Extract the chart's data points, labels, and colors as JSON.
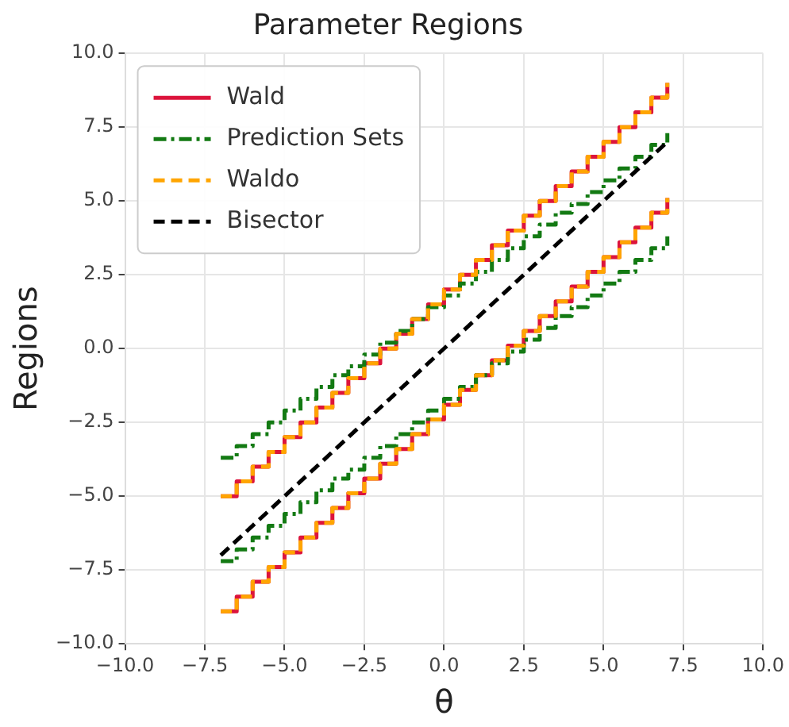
{
  "chart_data": {
    "type": "step",
    "title": "Parameter Regions",
    "xlabel": "θ",
    "ylabel": "Regions",
    "x": [
      -7,
      -6.5,
      -6,
      -5.5,
      -5,
      -4.5,
      -4,
      -3.5,
      -3,
      -2.5,
      -2,
      -1.5,
      -1,
      -0.5,
      0,
      0.5,
      1,
      1.5,
      2,
      2.5,
      3,
      3.5,
      4,
      4.5,
      5,
      5.5,
      6,
      6.5,
      7
    ],
    "series": [
      {
        "name": "Wald",
        "color": "#dc143c",
        "line_style": "solid",
        "values": [
          -5,
          -4.5,
          -4,
          -3.5,
          -3,
          -2.5,
          -2,
          -1.5,
          -1,
          -0.5,
          0,
          0.5,
          1,
          1.5,
          2,
          2.5,
          3,
          3.5,
          4,
          4.5,
          5,
          5.5,
          6,
          6.5,
          7,
          7.5,
          8,
          8.5,
          9
        ]
      },
      {
        "color": "#dc143c",
        "line_style": "solid",
        "values": [
          -8.9,
          -8.4,
          -7.9,
          -7.4,
          -6.9,
          -6.4,
          -5.9,
          -5.4,
          -4.9,
          -4.4,
          -3.9,
          -3.4,
          -2.9,
          -2.4,
          -1.9,
          -1.4,
          -0.9,
          -0.4,
          0.1,
          0.6,
          1.1,
          1.6,
          2.1,
          2.6,
          3.1,
          3.6,
          4.1,
          4.6,
          5.1
        ]
      },
      {
        "name": "Prediction Sets",
        "color": "#137a13",
        "line_style": "dashdot",
        "values": [
          -3.7,
          -3.3,
          -2.9,
          -2.5,
          -2.1,
          -1.7,
          -1.3,
          -0.9,
          -0.6,
          -0.2,
          0.2,
          0.6,
          1,
          1.4,
          1.8,
          2.2,
          2.6,
          3,
          3.4,
          3.8,
          4.2,
          4.6,
          4.9,
          5.3,
          5.7,
          6.1,
          6.5,
          6.9,
          7.3
        ]
      },
      {
        "color": "#137a13",
        "line_style": "dashdot",
        "values": [
          -7.2,
          -6.8,
          -6.4,
          -6,
          -5.6,
          -5.2,
          -4.8,
          -4.4,
          -4.1,
          -3.7,
          -3.3,
          -2.9,
          -2.5,
          -2.1,
          -1.7,
          -1.3,
          -0.9,
          -0.5,
          -0.1,
          0.3,
          0.7,
          1.1,
          1.4,
          1.8,
          2.2,
          2.6,
          3,
          3.4,
          3.8
        ]
      },
      {
        "name": "Waldo",
        "color": "#ffa500",
        "line_style": "dashed",
        "values": [
          -5,
          -4.5,
          -4,
          -3.5,
          -3,
          -2.5,
          -2,
          -1.5,
          -1,
          -0.5,
          0,
          0.5,
          1,
          1.5,
          2,
          2.5,
          3,
          3.5,
          4,
          4.5,
          5,
          5.5,
          6,
          6.5,
          7,
          7.5,
          8,
          8.5,
          9
        ]
      },
      {
        "color": "#ffa500",
        "line_style": "dashed",
        "values": [
          -8.9,
          -8.4,
          -7.9,
          -7.4,
          -6.9,
          -6.4,
          -5.9,
          -5.4,
          -4.9,
          -4.4,
          -3.9,
          -3.4,
          -2.9,
          -2.4,
          -1.9,
          -1.4,
          -0.9,
          -0.4,
          0.1,
          0.6,
          1.1,
          1.6,
          2.1,
          2.6,
          3.1,
          3.6,
          4.1,
          4.6,
          5.1
        ]
      },
      {
        "name": "Bisector",
        "type": "line",
        "color": "#000000",
        "line_style": "dashed",
        "x": [
          -7,
          7
        ],
        "values": [
          -7,
          7
        ]
      }
    ],
    "xlim": [
      -10,
      10
    ],
    "xticks": [
      {
        "value": -10,
        "label": "−10.0"
      },
      {
        "value": -7.5,
        "label": "−7.5"
      },
      {
        "value": -5,
        "label": "−5.0"
      },
      {
        "value": -2.5,
        "label": "−2.5"
      },
      {
        "value": 0,
        "label": "0.0"
      },
      {
        "value": 2.5,
        "label": "2.5"
      },
      {
        "value": 5,
        "label": "5.0"
      },
      {
        "value": 7.5,
        "label": "7.5"
      },
      {
        "value": 10,
        "label": "10.0"
      }
    ],
    "ylim": [
      -10,
      10
    ],
    "yticks": [
      {
        "value": -10,
        "label": "−10.0"
      },
      {
        "value": -7.5,
        "label": "−7.5"
      },
      {
        "value": -5,
        "label": "−5.0"
      },
      {
        "value": -2.5,
        "label": "−2.5"
      },
      {
        "value": 0,
        "label": "0.0"
      },
      {
        "value": 2.5,
        "label": "2.5"
      },
      {
        "value": 5,
        "label": "5.0"
      },
      {
        "value": 7.5,
        "label": "7.5"
      },
      {
        "value": 10,
        "label": "10.0"
      }
    ],
    "grid": true,
    "legend": "top left",
    "marker": "none"
  }
}
